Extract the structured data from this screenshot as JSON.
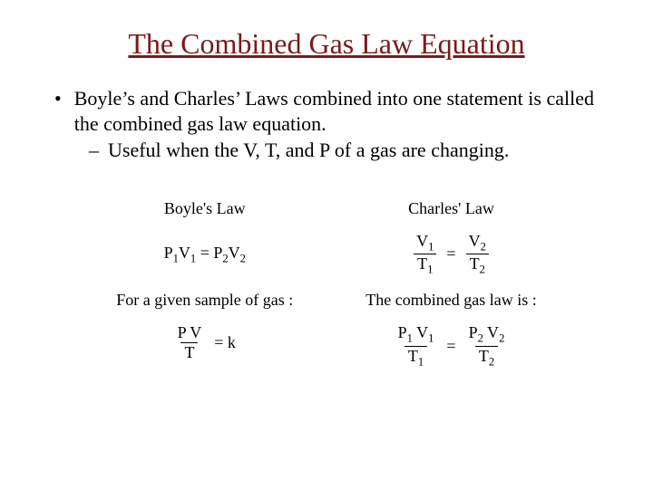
{
  "colors": {
    "title": "#7a1a1a",
    "body": "#000000",
    "background": "#ffffff"
  },
  "title": "The Combined Gas Law Equation",
  "bullet": "Boyle’s and Charles’ Laws combined into one statement is called the combined gas law equation.",
  "subbullet": "Useful when the V, T, and P of a gas are changing.",
  "equations": {
    "left": {
      "lawname": "Boyle's Law",
      "eq_lhs": "P",
      "eq_sub1": "1",
      "eq_v1": "V",
      "eq_vsub1": "1",
      "eq_eq": " = ",
      "eq_rhs": "P",
      "eq_sub2": "2",
      "eq_v2": "V",
      "eq_vsub2": "2",
      "caption": "For a given sample of gas :",
      "frac_num": "P V",
      "frac_den": "T",
      "eqk": "= k"
    },
    "right": {
      "lawname": "Charles' Law",
      "f1_num": "V",
      "f1_num_sub": "1",
      "f1_den": "T",
      "f1_den_sub": "1",
      "mid_eq": "=",
      "f2_num": "V",
      "f2_num_sub": "2",
      "f2_den": "T",
      "f2_den_sub": "2",
      "caption": "The combined gas law is :",
      "c1_num_p": "P",
      "c1_num_psub": "1",
      "c1_num_v": " V",
      "c1_num_vsub": "1",
      "c1_den": "T",
      "c1_den_sub": "1",
      "c_mid_eq": "=",
      "c2_num_p": "P",
      "c2_num_psub": "2",
      "c2_num_v": " V",
      "c2_num_vsub": "2",
      "c2_den": "T",
      "c2_den_sub": "2"
    }
  }
}
